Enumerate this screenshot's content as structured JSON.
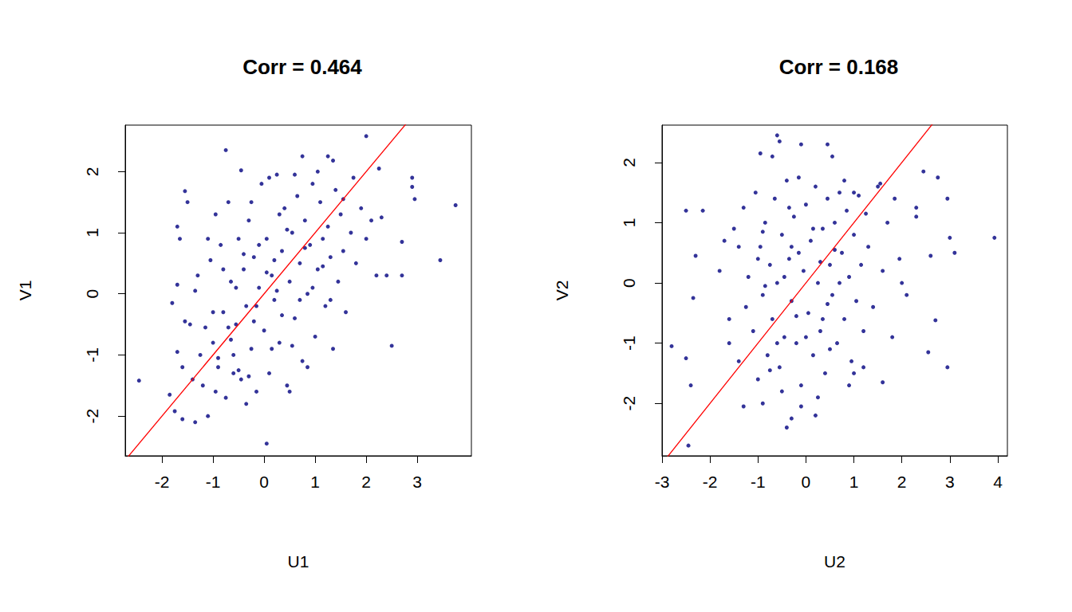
{
  "chart_data": [
    {
      "type": "scatter",
      "title": "Corr = 0.464",
      "x_label": "U1",
      "y_label": "V1",
      "color": "#000080",
      "marker": "circle",
      "xlim": [
        -2.72,
        4.06
      ],
      "ylim": [
        -2.65,
        2.76
      ],
      "xticks": [
        -2,
        -1,
        0,
        1,
        2,
        3
      ],
      "yticks": [
        -2,
        -1,
        0,
        1,
        2
      ],
      "reference_line": {
        "intercept": 0,
        "slope": 1,
        "color": "#ff0000",
        "line_style": "solid"
      },
      "points": [
        [
          -2.45,
          -1.42
        ],
        [
          3.75,
          1.45
        ],
        [
          3.45,
          0.55
        ],
        [
          2.9,
          1.9
        ],
        [
          2.9,
          1.75
        ],
        [
          2.95,
          1.55
        ],
        [
          2.7,
          0.85
        ],
        [
          2.7,
          0.3
        ],
        [
          2.5,
          -0.85
        ],
        [
          2.0,
          2.58
        ],
        [
          2.25,
          2.05
        ],
        [
          1.25,
          2.25
        ],
        [
          1.35,
          2.18
        ],
        [
          0.75,
          2.25
        ],
        [
          -0.75,
          2.35
        ],
        [
          0.05,
          -2.45
        ],
        [
          -0.45,
          2.02
        ],
        [
          -1.55,
          1.68
        ],
        [
          -1.5,
          1.5
        ],
        [
          -1.8,
          -0.15
        ],
        [
          -1.85,
          -1.65
        ],
        [
          -1.75,
          -1.92
        ],
        [
          -1.35,
          -2.1
        ],
        [
          -1.6,
          -2.05
        ],
        [
          -1.7,
          1.1
        ],
        [
          -1.65,
          0.9
        ],
        [
          -1.7,
          0.15
        ],
        [
          -1.7,
          -0.95
        ],
        [
          -1.6,
          -1.2
        ],
        [
          -1.45,
          -0.5
        ],
        [
          -1.3,
          0.3
        ],
        [
          -1.2,
          -1.5
        ],
        [
          -1.1,
          -2.0
        ],
        [
          -1.05,
          0.55
        ],
        [
          -1.0,
          -0.8
        ],
        [
          -0.95,
          1.3
        ],
        [
          -0.9,
          -1.2
        ],
        [
          -0.85,
          0.8
        ],
        [
          -0.8,
          -0.3
        ],
        [
          -0.75,
          -1.7
        ],
        [
          -0.7,
          1.5
        ],
        [
          -0.65,
          0.2
        ],
        [
          -0.6,
          -1.0
        ],
        [
          -0.55,
          -0.5
        ],
        [
          -0.5,
          0.9
        ],
        [
          -0.45,
          -1.4
        ],
        [
          -0.4,
          0.4
        ],
        [
          -0.35,
          -0.2
        ],
        [
          -0.3,
          1.2
        ],
        [
          -0.25,
          -0.9
        ],
        [
          -0.2,
          0.6
        ],
        [
          -0.15,
          -1.6
        ],
        [
          -0.1,
          0.1
        ],
        [
          -0.05,
          1.8
        ],
        [
          0.0,
          -0.6
        ],
        [
          0.05,
          0.9
        ],
        [
          0.1,
          -1.3
        ],
        [
          0.15,
          0.3
        ],
        [
          0.2,
          -0.1
        ],
        [
          0.25,
          1.95
        ],
        [
          0.3,
          -0.8
        ],
        [
          0.35,
          0.7
        ],
        [
          0.4,
          1.4
        ],
        [
          0.45,
          -1.5
        ],
        [
          0.5,
          0.2
        ],
        [
          0.55,
          1.0
        ],
        [
          0.6,
          -0.4
        ],
        [
          0.65,
          1.6
        ],
        [
          0.7,
          0.5
        ],
        [
          0.75,
          -1.1
        ],
        [
          0.8,
          1.2
        ],
        [
          0.85,
          0.0
        ],
        [
          0.9,
          0.8
        ],
        [
          0.95,
          1.8
        ],
        [
          1.0,
          -0.7
        ],
        [
          1.05,
          0.4
        ],
        [
          1.1,
          1.5
        ],
        [
          1.15,
          0.9
        ],
        [
          1.2,
          -0.2
        ],
        [
          1.25,
          1.1
        ],
        [
          1.3,
          0.6
        ],
        [
          1.35,
          -0.9
        ],
        [
          1.4,
          1.7
        ],
        [
          1.45,
          0.2
        ],
        [
          1.5,
          1.3
        ],
        [
          1.55,
          0.7
        ],
        [
          1.6,
          -0.3
        ],
        [
          1.7,
          1.0
        ],
        [
          1.75,
          1.9
        ],
        [
          1.8,
          0.5
        ],
        [
          1.9,
          1.4
        ],
        [
          2.0,
          0.9
        ],
        [
          2.1,
          1.2
        ],
        [
          2.2,
          0.3
        ],
        [
          2.3,
          1.25
        ],
        [
          2.4,
          0.3
        ],
        [
          -0.9,
          -1.05
        ],
        [
          -0.5,
          -1.25
        ],
        [
          -0.3,
          -1.35
        ],
        [
          -0.6,
          -1.3
        ],
        [
          -1.25,
          -1.0
        ],
        [
          -1.0,
          -0.3
        ],
        [
          -0.2,
          -0.45
        ],
        [
          0.35,
          -0.35
        ],
        [
          0.55,
          -0.85
        ],
        [
          -0.8,
          0.4
        ],
        [
          -0.4,
          0.65
        ],
        [
          0.2,
          0.55
        ],
        [
          0.8,
          0.75
        ],
        [
          0.05,
          0.35
        ],
        [
          -0.15,
          -0.2
        ],
        [
          -0.55,
          0.1
        ],
        [
          -1.15,
          -0.55
        ],
        [
          -1.4,
          -1.4
        ],
        [
          0.95,
          0.1
        ],
        [
          1.15,
          0.45
        ],
        [
          0.45,
          1.05
        ],
        [
          -0.25,
          1.5
        ],
        [
          -0.65,
          -0.75
        ],
        [
          0.15,
          -0.9
        ],
        [
          0.7,
          -0.1
        ],
        [
          1.55,
          1.55
        ],
        [
          0.3,
          1.3
        ],
        [
          -1.1,
          0.9
        ],
        [
          -0.35,
          -1.8
        ],
        [
          0.5,
          -1.6
        ],
        [
          0.6,
          1.95
        ],
        [
          1.05,
          2.0
        ],
        [
          0.1,
          1.9
        ],
        [
          -0.95,
          -1.6
        ],
        [
          0.85,
          -1.2
        ],
        [
          1.3,
          -0.1
        ],
        [
          -0.7,
          -0.55
        ],
        [
          -0.1,
          0.8
        ],
        [
          0.25,
          0.05
        ],
        [
          -1.35,
          0.05
        ],
        [
          -1.55,
          -0.45
        ]
      ]
    },
    {
      "type": "scatter",
      "title": "Corr = 0.168",
      "x_label": "U2",
      "y_label": "V2",
      "color": "#000080",
      "marker": "circle",
      "xlim": [
        -3.0,
        4.2
      ],
      "ylim": [
        -2.87,
        2.62
      ],
      "xticks": [
        -3,
        -2,
        -1,
        0,
        1,
        2,
        3,
        4
      ],
      "yticks": [
        -2,
        -1,
        0,
        1,
        2
      ],
      "reference_line": {
        "intercept": 0,
        "slope": 1,
        "color": "#ff0000",
        "line_style": "solid"
      },
      "points": [
        [
          -2.45,
          -2.7
        ],
        [
          -2.5,
          1.2
        ],
        [
          -2.5,
          -1.25
        ],
        [
          -2.4,
          -1.7
        ],
        [
          -2.8,
          -1.05
        ],
        [
          -2.15,
          1.2
        ],
        [
          -2.3,
          0.45
        ],
        [
          -2.35,
          -0.25
        ],
        [
          3.93,
          0.75
        ],
        [
          3.1,
          0.5
        ],
        [
          3.0,
          0.75
        ],
        [
          2.95,
          1.4
        ],
        [
          2.95,
          -1.4
        ],
        [
          2.7,
          -0.62
        ],
        [
          2.55,
          -1.15
        ],
        [
          2.45,
          1.85
        ],
        [
          2.75,
          1.75
        ],
        [
          2.6,
          0.45
        ],
        [
          2.3,
          1.1
        ],
        [
          2.3,
          1.25
        ],
        [
          1.6,
          -1.65
        ],
        [
          -0.6,
          2.45
        ],
        [
          -0.55,
          2.35
        ],
        [
          -0.1,
          2.3
        ],
        [
          -0.95,
          2.15
        ],
        [
          -0.7,
          2.1
        ],
        [
          0.45,
          2.3
        ],
        [
          0.55,
          2.1
        ],
        [
          -0.4,
          -2.4
        ],
        [
          -0.1,
          -2.05
        ],
        [
          0.2,
          -2.2
        ],
        [
          -0.3,
          -2.25
        ],
        [
          -1.3,
          -2.05
        ],
        [
          -0.9,
          -2.0
        ],
        [
          1.0,
          -1.5
        ],
        [
          1.2,
          -1.4
        ],
        [
          -1.8,
          0.2
        ],
        [
          -1.6,
          -0.6
        ],
        [
          -1.5,
          0.9
        ],
        [
          -1.4,
          -1.3
        ],
        [
          -1.3,
          1.25
        ],
        [
          -1.2,
          0.1
        ],
        [
          -1.1,
          -0.8
        ],
        [
          -1.05,
          1.5
        ],
        [
          -1.0,
          -1.6
        ],
        [
          -0.95,
          0.6
        ],
        [
          -0.9,
          -0.2
        ],
        [
          -0.85,
          1.0
        ],
        [
          -0.8,
          -1.2
        ],
        [
          -0.75,
          0.3
        ],
        [
          -0.7,
          -0.6
        ],
        [
          -0.65,
          1.4
        ],
        [
          -0.6,
          0.0
        ],
        [
          -0.55,
          -1.4
        ],
        [
          -0.5,
          0.8
        ],
        [
          -0.45,
          -0.9
        ],
        [
          -0.4,
          1.7
        ],
        [
          -0.35,
          0.4
        ],
        [
          -0.3,
          -0.3
        ],
        [
          -0.25,
          1.1
        ],
        [
          -0.2,
          -1.0
        ],
        [
          -0.15,
          0.5
        ],
        [
          -0.1,
          -1.7
        ],
        [
          -0.05,
          0.2
        ],
        [
          0.0,
          1.3
        ],
        [
          0.05,
          -0.5
        ],
        [
          0.1,
          0.7
        ],
        [
          0.15,
          -1.2
        ],
        [
          0.2,
          1.6
        ],
        [
          0.25,
          0.0
        ],
        [
          0.3,
          -0.8
        ],
        [
          0.35,
          0.9
        ],
        [
          0.4,
          -1.5
        ],
        [
          0.45,
          1.4
        ],
        [
          0.5,
          0.3
        ],
        [
          0.55,
          -0.2
        ],
        [
          0.6,
          1.0
        ],
        [
          0.65,
          -1.0
        ],
        [
          0.7,
          1.5
        ],
        [
          0.75,
          0.5
        ],
        [
          0.8,
          -0.6
        ],
        [
          0.85,
          1.2
        ],
        [
          0.9,
          0.1
        ],
        [
          0.95,
          -1.3
        ],
        [
          1.0,
          0.8
        ],
        [
          1.05,
          -0.3
        ],
        [
          1.1,
          1.45
        ],
        [
          1.15,
          0.3
        ],
        [
          1.2,
          -0.8
        ],
        [
          1.3,
          0.6
        ],
        [
          1.4,
          -0.4
        ],
        [
          1.5,
          1.6
        ],
        [
          1.55,
          1.65
        ],
        [
          1.6,
          0.2
        ],
        [
          1.7,
          1.0
        ],
        [
          1.8,
          -0.9
        ],
        [
          1.85,
          1.4
        ],
        [
          1.95,
          0.4
        ],
        [
          2.1,
          -0.2
        ],
        [
          2.0,
          0.0
        ],
        [
          -1.25,
          -0.4
        ],
        [
          -0.9,
          0.85
        ],
        [
          -0.6,
          -1.0
        ],
        [
          -0.3,
          0.6
        ],
        [
          0.0,
          -0.9
        ],
        [
          0.3,
          0.35
        ],
        [
          0.6,
          0.55
        ],
        [
          -0.45,
          0.1
        ],
        [
          0.15,
          0.9
        ],
        [
          0.5,
          -1.1
        ],
        [
          -0.2,
          -0.55
        ],
        [
          -1.0,
          0.4
        ],
        [
          -0.75,
          -1.45
        ],
        [
          0.8,
          1.7
        ],
        [
          0.45,
          -0.35
        ],
        [
          -0.15,
          1.75
        ],
        [
          -1.4,
          0.6
        ],
        [
          -1.6,
          -1.0
        ],
        [
          -1.7,
          0.7
        ],
        [
          -0.5,
          -1.8
        ],
        [
          0.25,
          -1.9
        ],
        [
          0.9,
          -1.7
        ],
        [
          1.25,
          1.15
        ],
        [
          -0.35,
          1.25
        ],
        [
          0.7,
          0.0
        ],
        [
          1.0,
          1.5
        ],
        [
          -0.85,
          -0.05
        ],
        [
          0.35,
          -0.6
        ]
      ]
    }
  ]
}
